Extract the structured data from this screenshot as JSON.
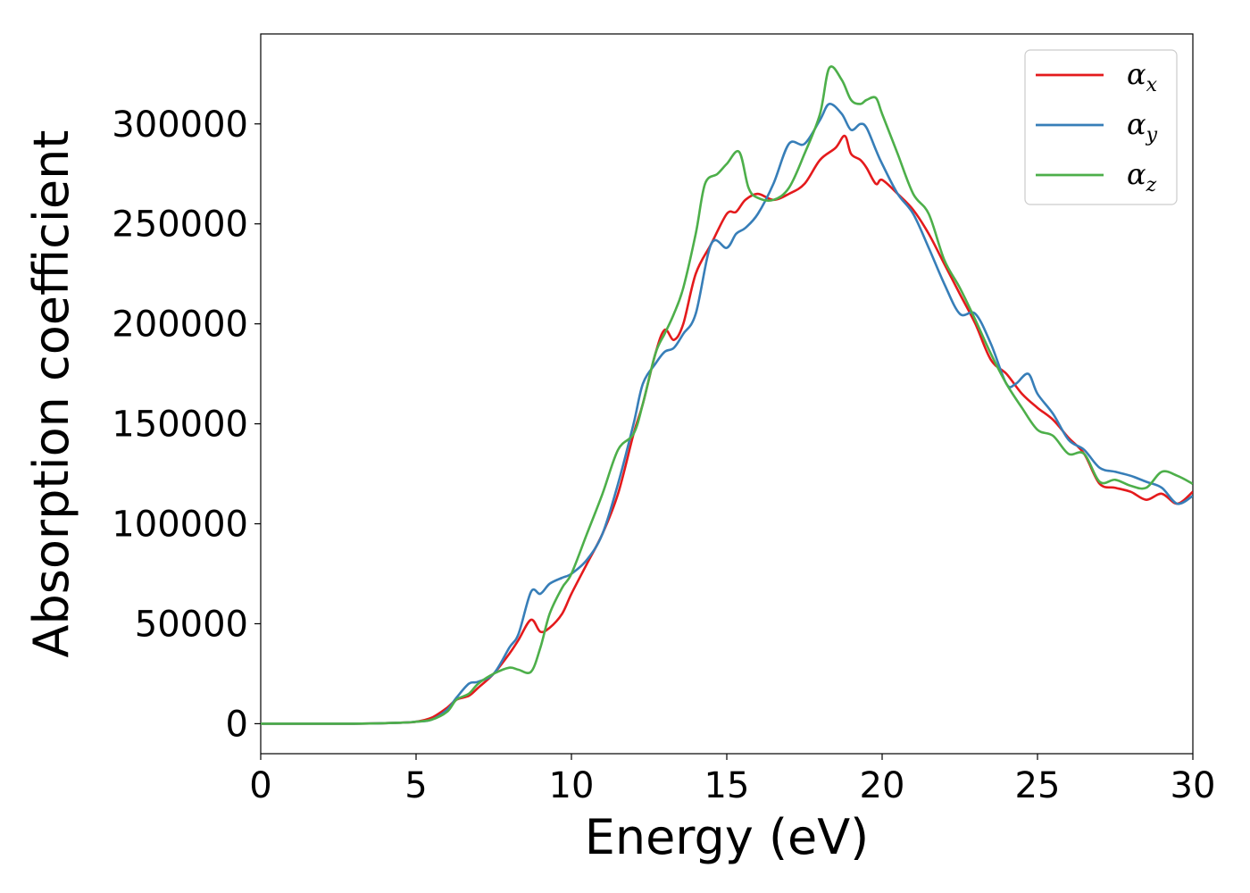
{
  "chart_data": {
    "type": "line",
    "title": "",
    "xlabel": "Energy (eV)",
    "ylabel": "Absorption coefficient",
    "xlim": [
      0,
      30
    ],
    "ylim": [
      -15000,
      345000
    ],
    "xticks": [
      0,
      5,
      10,
      15,
      20,
      25,
      30
    ],
    "yticks": [
      0,
      50000,
      100000,
      150000,
      200000,
      250000,
      300000
    ],
    "grid": false,
    "legend": "top-right",
    "series": [
      {
        "name": "α",
        "subscript": "x",
        "color": "#e41a1c",
        "x": [
          0,
          3,
          4.5,
          5,
          5.5,
          6,
          6.3,
          6.7,
          7,
          7.5,
          8,
          8.3,
          8.7,
          9,
          9.3,
          9.7,
          10,
          10.5,
          11,
          11.5,
          12,
          12.3,
          12.7,
          13,
          13.3,
          13.6,
          14,
          14.5,
          15,
          15.3,
          15.6,
          16,
          16.5,
          17,
          17.5,
          18,
          18.5,
          18.8,
          19,
          19.3,
          19.5,
          19.8,
          20,
          20.5,
          21,
          21.5,
          22,
          22.5,
          23,
          23.5,
          24,
          24.5,
          25,
          25.5,
          26,
          26.5,
          27,
          27.5,
          28,
          28.5,
          29,
          29.5,
          30
        ],
        "y": [
          0,
          0,
          500,
          1000,
          3000,
          8000,
          12000,
          14000,
          18000,
          25000,
          35000,
          42000,
          52000,
          46000,
          48000,
          55000,
          65000,
          80000,
          95000,
          115000,
          145000,
          160000,
          185000,
          197000,
          192000,
          200000,
          225000,
          240000,
          255000,
          256000,
          262000,
          265000,
          262000,
          265000,
          270000,
          282000,
          288000,
          294000,
          285000,
          282000,
          278000,
          270000,
          272000,
          265000,
          257000,
          245000,
          230000,
          215000,
          200000,
          182000,
          175000,
          165000,
          158000,
          152000,
          143000,
          135000,
          120000,
          118000,
          116000,
          112000,
          115000,
          110000,
          116000
        ]
      },
      {
        "name": "α",
        "subscript": "y",
        "color": "#377eb8",
        "x": [
          0,
          3,
          4.5,
          5,
          5.5,
          6,
          6.3,
          6.7,
          7,
          7.5,
          8,
          8.3,
          8.7,
          9,
          9.3,
          9.7,
          10,
          10.5,
          11,
          11.5,
          12,
          12.3,
          12.7,
          13,
          13.3,
          13.6,
          14,
          14.5,
          15,
          15.3,
          15.6,
          16,
          16.5,
          17,
          17.5,
          18,
          18.3,
          18.7,
          19,
          19.3,
          19.5,
          19.8,
          20,
          20.5,
          21,
          21.5,
          22,
          22.5,
          23,
          23.5,
          24,
          24.3,
          24.7,
          25,
          25.5,
          26,
          26.5,
          27,
          27.5,
          28,
          28.5,
          29,
          29.5,
          30
        ],
        "y": [
          0,
          0,
          500,
          1000,
          2000,
          7000,
          13000,
          20000,
          21000,
          25000,
          38000,
          45000,
          66000,
          65000,
          70000,
          73000,
          75000,
          82000,
          95000,
          120000,
          150000,
          170000,
          180000,
          186000,
          188000,
          195000,
          205000,
          240000,
          238000,
          245000,
          248000,
          255000,
          270000,
          290000,
          290000,
          302000,
          310000,
          305000,
          297000,
          300000,
          298000,
          287000,
          280000,
          265000,
          255000,
          238000,
          220000,
          205000,
          205000,
          190000,
          170000,
          170000,
          175000,
          165000,
          155000,
          142000,
          137000,
          128000,
          126000,
          124000,
          121000,
          118000,
          110000,
          114000
        ]
      },
      {
        "name": "α",
        "subscript": "z",
        "color": "#4daf4a",
        "x": [
          0,
          3,
          4.5,
          5,
          5.5,
          6,
          6.3,
          6.7,
          7,
          7.5,
          8,
          8.3,
          8.7,
          9,
          9.3,
          9.7,
          10,
          10.5,
          11,
          11.5,
          12,
          12.3,
          12.7,
          13,
          13.3,
          13.6,
          14,
          14.3,
          14.7,
          15,
          15.4,
          15.7,
          16,
          16.5,
          17,
          17.5,
          18,
          18.3,
          18.7,
          19,
          19.3,
          19.5,
          19.8,
          20,
          20.5,
          21,
          21.5,
          22,
          22.5,
          23,
          23.5,
          24,
          24.5,
          25,
          25.5,
          26,
          26.5,
          27,
          27.5,
          28,
          28.5,
          29,
          29.5,
          30
        ],
        "y": [
          0,
          0,
          500,
          1000,
          2000,
          6000,
          12000,
          15000,
          20000,
          25000,
          28000,
          27000,
          26000,
          38000,
          55000,
          68000,
          75000,
          95000,
          115000,
          137000,
          145000,
          160000,
          185000,
          195000,
          205000,
          218000,
          245000,
          270000,
          275000,
          280000,
          286000,
          268000,
          263000,
          262000,
          268000,
          285000,
          305000,
          328000,
          322000,
          312000,
          310000,
          312000,
          313000,
          305000,
          285000,
          265000,
          255000,
          232000,
          218000,
          202000,
          185000,
          170000,
          158000,
          147000,
          144000,
          135000,
          135000,
          121000,
          122000,
          119000,
          118000,
          126000,
          124000,
          120000
        ]
      }
    ]
  }
}
